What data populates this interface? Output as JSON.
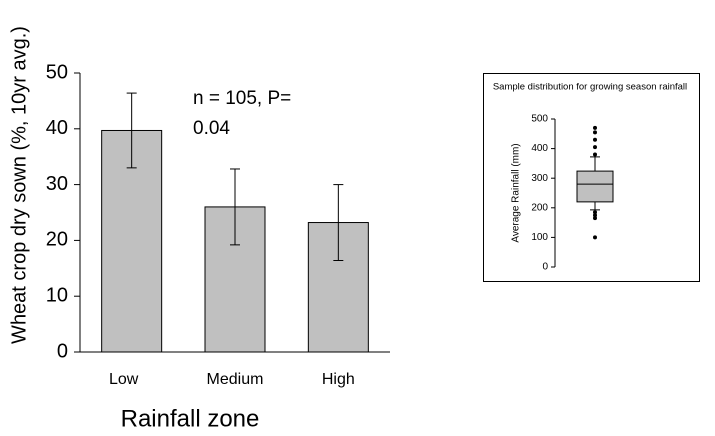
{
  "chart_data": [
    {
      "type": "bar",
      "y_label": "Wheat crop dry sown (%, 10yr avg.)",
      "x_label": "Rainfall  zone",
      "annotations": [
        "n = 105,  P=",
        "0.04"
      ],
      "categories": [
        "Low",
        "Medium",
        "High"
      ],
      "values": [
        39.7,
        26,
        23.2
      ],
      "errors": [
        6.7,
        6.8,
        6.8
      ],
      "color": "#c0c0c0",
      "ylim": [
        0,
        50
      ],
      "yticks": [
        0,
        10,
        20,
        30,
        40,
        50
      ]
    },
    {
      "type": "box",
      "title": "Sample distribution for growing season rainfall",
      "y_label": "Average Rainfall (mm)",
      "q1": 220,
      "median": 280,
      "q3": 324,
      "whisker_low": 193,
      "whisker_high": 372,
      "outliers": [
        470,
        455,
        430,
        405,
        380,
        185,
        175,
        165,
        100
      ],
      "color": "#c0c0c0",
      "ylim": [
        0,
        500
      ],
      "yticks": [
        0,
        100,
        200,
        300,
        400,
        500
      ]
    }
  ]
}
